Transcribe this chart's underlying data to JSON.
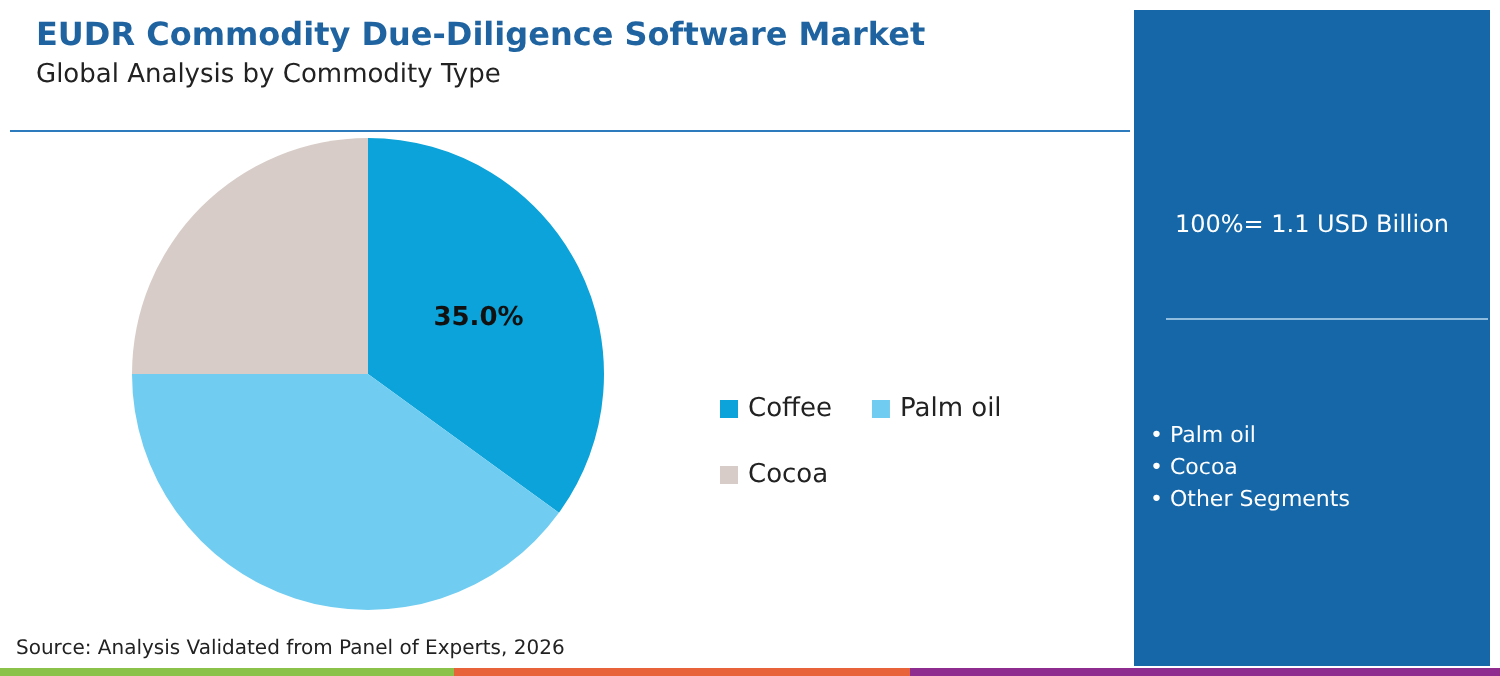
{
  "chart_data": {
    "type": "pie",
    "title": "EUDR Commodity Due-Diligence Software Market",
    "subtitle": "Global Analysis by Commodity Type",
    "categories": [
      "Coffee",
      "Palm oil",
      "Cocoa"
    ],
    "values": [
      35,
      40,
      25
    ],
    "colors": [
      "#0ba3d9",
      "#70cdf1",
      "#d7ccc7"
    ],
    "value_labels": [
      "35.0%",
      null,
      null
    ],
    "legend": "right",
    "annotations": [
      "100%= 1.1 USD Billion",
      "• Palm oil",
      "• Cocoa",
      "• Other Segments",
      "Source: Analysis Validated from Panel of Experts, 2026"
    ]
  }
}
